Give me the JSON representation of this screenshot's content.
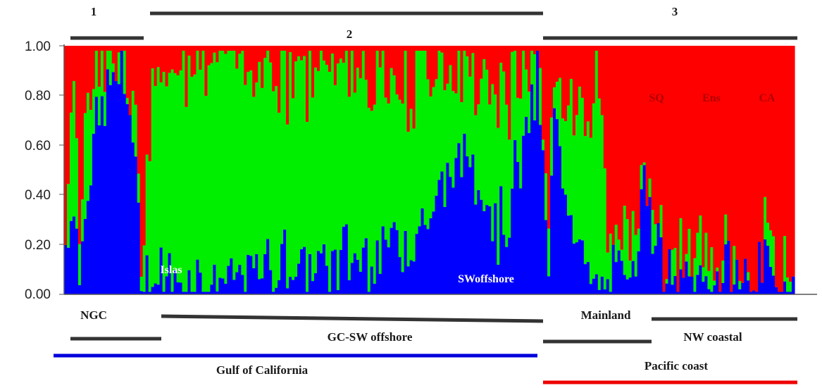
{
  "chart_data": {
    "type": "bar",
    "subtype": "stacked-100",
    "ylim": [
      0,
      1
    ],
    "yticks": [
      "0.00",
      "0.20",
      "0.40",
      "0.60",
      "0.80",
      "1.00"
    ],
    "series": [
      {
        "color": "#0000ff"
      },
      {
        "color": "#00ee00"
      },
      {
        "color": "#ff0000"
      }
    ],
    "group_labels_top": [
      "1",
      "2",
      "3"
    ],
    "inner_labels": [
      {
        "text": "Islas",
        "color": "#ffffff"
      },
      {
        "text": "SWoffshore",
        "color": "#ffffff"
      },
      {
        "text": "SQ",
        "color": "#b00000"
      },
      {
        "text": "Ens",
        "color": "#b00000"
      },
      {
        "text": "CA",
        "color": "#b00000"
      }
    ],
    "region_labels": [
      "NGC",
      "GC-SW offshore",
      "Mainland",
      "NW coastal",
      "Gulf of California",
      "Pacific coast"
    ],
    "anchors": [
      {
        "x": 0.0,
        "b": 0.2,
        "g": 0.1
      },
      {
        "x": 0.01,
        "b": 0.4,
        "g": 0.5
      },
      {
        "x": 0.02,
        "b": 0.05,
        "g": 0.25
      },
      {
        "x": 0.03,
        "b": 0.5,
        "g": 0.3
      },
      {
        "x": 0.05,
        "b": 0.7,
        "g": 0.25
      },
      {
        "x": 0.07,
        "b": 0.88,
        "g": 0.08
      },
      {
        "x": 0.09,
        "b": 0.75,
        "g": 0.1
      },
      {
        "x": 0.105,
        "b": 0.15,
        "g": 0.1
      },
      {
        "x": 0.11,
        "b": 0.08,
        "g": 0.15
      },
      {
        "x": 0.12,
        "b": 0.05,
        "g": 0.75
      },
      {
        "x": 0.15,
        "b": 0.05,
        "g": 0.9
      },
      {
        "x": 0.2,
        "b": 0.06,
        "g": 0.88
      },
      {
        "x": 0.3,
        "b": 0.12,
        "g": 0.8
      },
      {
        "x": 0.4,
        "b": 0.15,
        "g": 0.78
      },
      {
        "x": 0.5,
        "b": 0.3,
        "g": 0.62
      },
      {
        "x": 0.55,
        "b": 0.6,
        "g": 0.3
      },
      {
        "x": 0.6,
        "b": 0.25,
        "g": 0.65
      },
      {
        "x": 0.65,
        "b": 0.85,
        "g": 0.08
      },
      {
        "x": 0.665,
        "b": 0.0,
        "g": 0.1
      },
      {
        "x": 0.67,
        "b": 0.75,
        "g": 0.2
      },
      {
        "x": 0.7,
        "b": 0.3,
        "g": 0.55
      },
      {
        "x": 0.72,
        "b": 0.05,
        "g": 0.65
      },
      {
        "x": 0.73,
        "b": 0.04,
        "g": 0.9
      },
      {
        "x": 0.75,
        "b": 0.03,
        "g": 0.05
      },
      {
        "x": 0.77,
        "b": 0.03,
        "g": 0.2
      },
      {
        "x": 0.8,
        "b": 0.5,
        "g": 0.05
      },
      {
        "x": 0.82,
        "b": 0.03,
        "g": 0.03
      },
      {
        "x": 0.87,
        "b": 0.05,
        "g": 0.1
      },
      {
        "x": 0.9,
        "b": 0.05,
        "g": 0.02
      },
      {
        "x": 0.95,
        "b": 0.05,
        "g": 0.02
      },
      {
        "x": 1.0,
        "b": 0.05,
        "g": 0.05
      }
    ]
  }
}
